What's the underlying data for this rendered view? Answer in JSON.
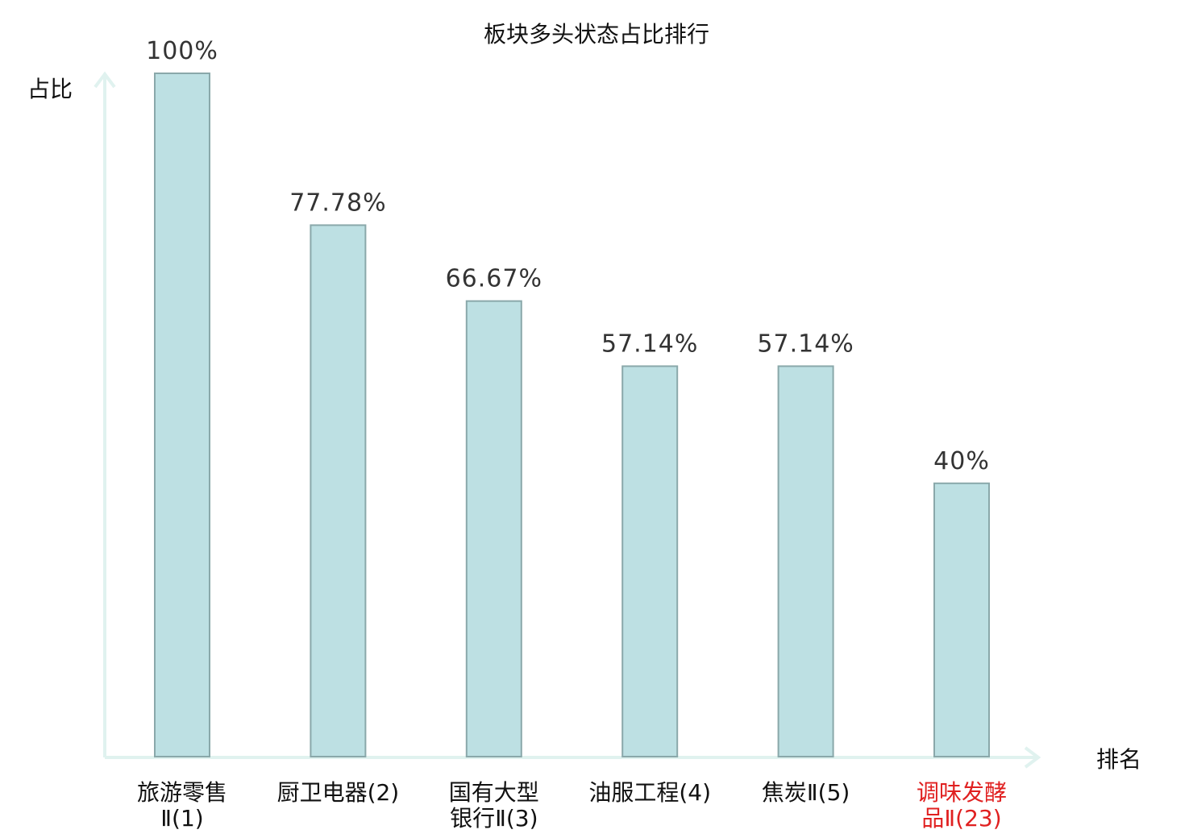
{
  "chart_data": {
    "type": "bar",
    "title": "板块多头状态占比排行",
    "ylabel": "占比",
    "xlabel": "排名",
    "ylim": [
      0,
      100
    ],
    "grid": false,
    "legend": "none",
    "categories": [
      [
        "旅游零售",
        "Ⅱ(1)"
      ],
      [
        "厨卫电器(2)"
      ],
      [
        "国有大型",
        "银行Ⅱ(3)"
      ],
      [
        "油服工程(4)"
      ],
      [
        "焦炭Ⅱ(5)"
      ],
      [
        "调味发酵",
        "品Ⅱ(23)"
      ]
    ],
    "values": [
      100,
      77.78,
      66.67,
      57.14,
      57.14,
      40
    ],
    "value_labels": [
      "100%",
      "77.78%",
      "66.67%",
      "57.14%",
      "57.14%",
      "40%"
    ],
    "highlight_index": 5,
    "colors": {
      "bar_fill": "#bde0e3",
      "bar_stroke": "#8aa8aa",
      "axis": "#e0f2ef",
      "label": "#111111",
      "highlight": "#e02020"
    }
  }
}
